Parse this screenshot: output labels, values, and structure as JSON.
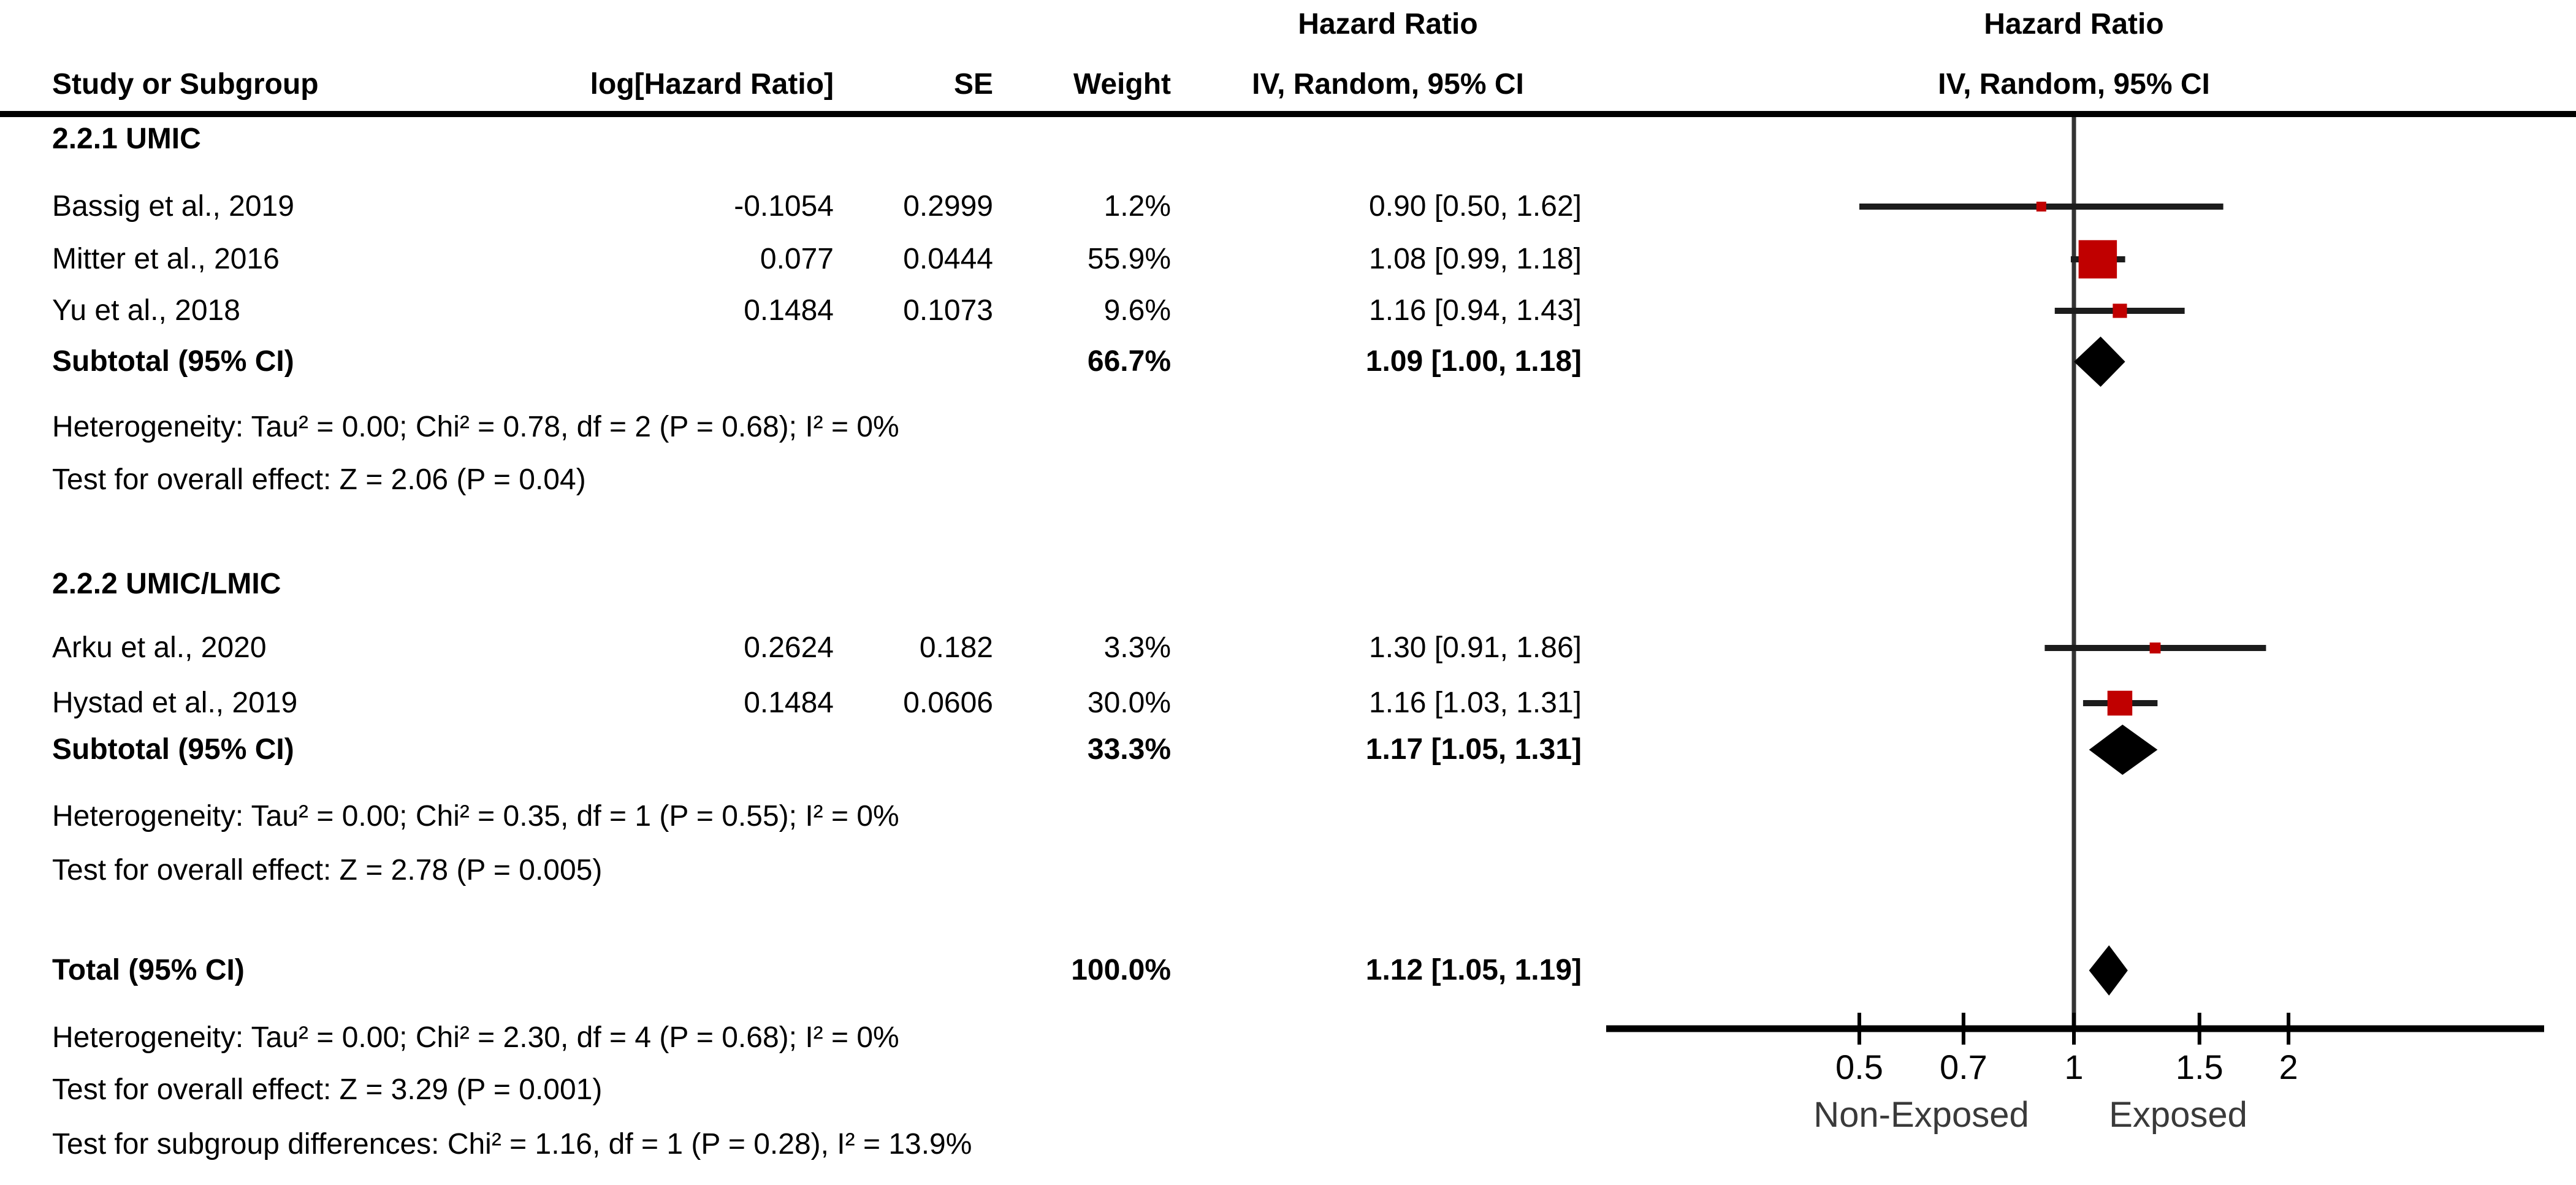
{
  "chart_data": {
    "type": "forest",
    "effect_measure": "Hazard Ratio",
    "method": "IV, Random, 95% CI",
    "header": {
      "effect_top": "Hazard Ratio",
      "study": "Study or Subgroup",
      "loghr": "log[Hazard Ratio]",
      "se": "SE",
      "weight": "Weight",
      "ci": "IV, Random, 95% CI",
      "plot_top": "Hazard Ratio",
      "plot_bottom": "IV, Random, 95% CI"
    },
    "groups": [
      {
        "name": "2.2.1 UMIC",
        "studies": [
          {
            "label": "Bassig et al., 2019",
            "log_hr": "-0.1054",
            "se": "0.2999",
            "weight": "1.2%",
            "ci_text": "0.90 [0.50, 1.62]",
            "hr": 0.9,
            "low": 0.5,
            "high": 1.62,
            "weight_pct": 1.2
          },
          {
            "label": "Mitter et al., 2016",
            "log_hr": "0.077",
            "se": "0.0444",
            "weight": "55.9%",
            "ci_text": "1.08 [0.99, 1.18]",
            "hr": 1.08,
            "low": 0.99,
            "high": 1.18,
            "weight_pct": 55.9
          },
          {
            "label": "Yu et al., 2018",
            "log_hr": "0.1484",
            "se": "0.1073",
            "weight": "9.6%",
            "ci_text": "1.16 [0.94, 1.43]",
            "hr": 1.16,
            "low": 0.94,
            "high": 1.43,
            "weight_pct": 9.6
          }
        ],
        "subtotal": {
          "label": "Subtotal (95% CI)",
          "weight": "66.7%",
          "ci_text": "1.09 [1.00, 1.18]",
          "hr": 1.09,
          "low": 1.0,
          "high": 1.18
        },
        "heterogeneity": "Heterogeneity: Tau² = 0.00; Chi² = 0.78, df = 2 (P = 0.68); I² = 0%",
        "overall_effect": "Test for overall effect: Z = 2.06 (P = 0.04)"
      },
      {
        "name": "2.2.2 UMIC/LMIC",
        "studies": [
          {
            "label": "Arku et al., 2020",
            "log_hr": "0.2624",
            "se": "0.182",
            "weight": "3.3%",
            "ci_text": "1.30 [0.91, 1.86]",
            "hr": 1.3,
            "low": 0.91,
            "high": 1.86,
            "weight_pct": 3.3
          },
          {
            "label": "Hystad et al., 2019",
            "log_hr": "0.1484",
            "se": "0.0606",
            "weight": "30.0%",
            "ci_text": "1.16 [1.03, 1.31]",
            "hr": 1.16,
            "low": 1.03,
            "high": 1.31,
            "weight_pct": 30.0
          }
        ],
        "subtotal": {
          "label": "Subtotal (95% CI)",
          "weight": "33.3%",
          "ci_text": "1.17 [1.05, 1.31]",
          "hr": 1.17,
          "low": 1.05,
          "high": 1.31
        },
        "heterogeneity": "Heterogeneity: Tau² = 0.00; Chi² = 0.35, df = 1 (P = 0.55); I² = 0%",
        "overall_effect": "Test for overall effect: Z = 2.78 (P = 0.005)"
      }
    ],
    "total": {
      "label": "Total (95% CI)",
      "weight": "100.0%",
      "ci_text": "1.12 [1.05, 1.19]",
      "hr": 1.12,
      "low": 1.05,
      "high": 1.19
    },
    "total_heterogeneity": "Heterogeneity: Tau² = 0.00; Chi² = 2.30, df = 4 (P = 0.68); I² = 0%",
    "total_overall_effect": "Test for overall effect: Z = 3.29 (P = 0.001)",
    "subgroup_differences": "Test for subgroup differences: Chi² = 1.16, df = 1 (P = 0.28), I² = 13.9%",
    "x_axis": {
      "scale": "log",
      "ticks": [
        0.5,
        0.7,
        1,
        1.5,
        2
      ],
      "null_value": 1,
      "labels": [
        "Non-Exposed",
        "Exposed"
      ]
    },
    "colors": {
      "marker_red": "#c00000",
      "diamond_black": "#000000",
      "ci_line": "#1c1c1c",
      "null_line": "#333333",
      "axis_line": "#000000",
      "axis_label_text": "#3a3a3a"
    }
  }
}
